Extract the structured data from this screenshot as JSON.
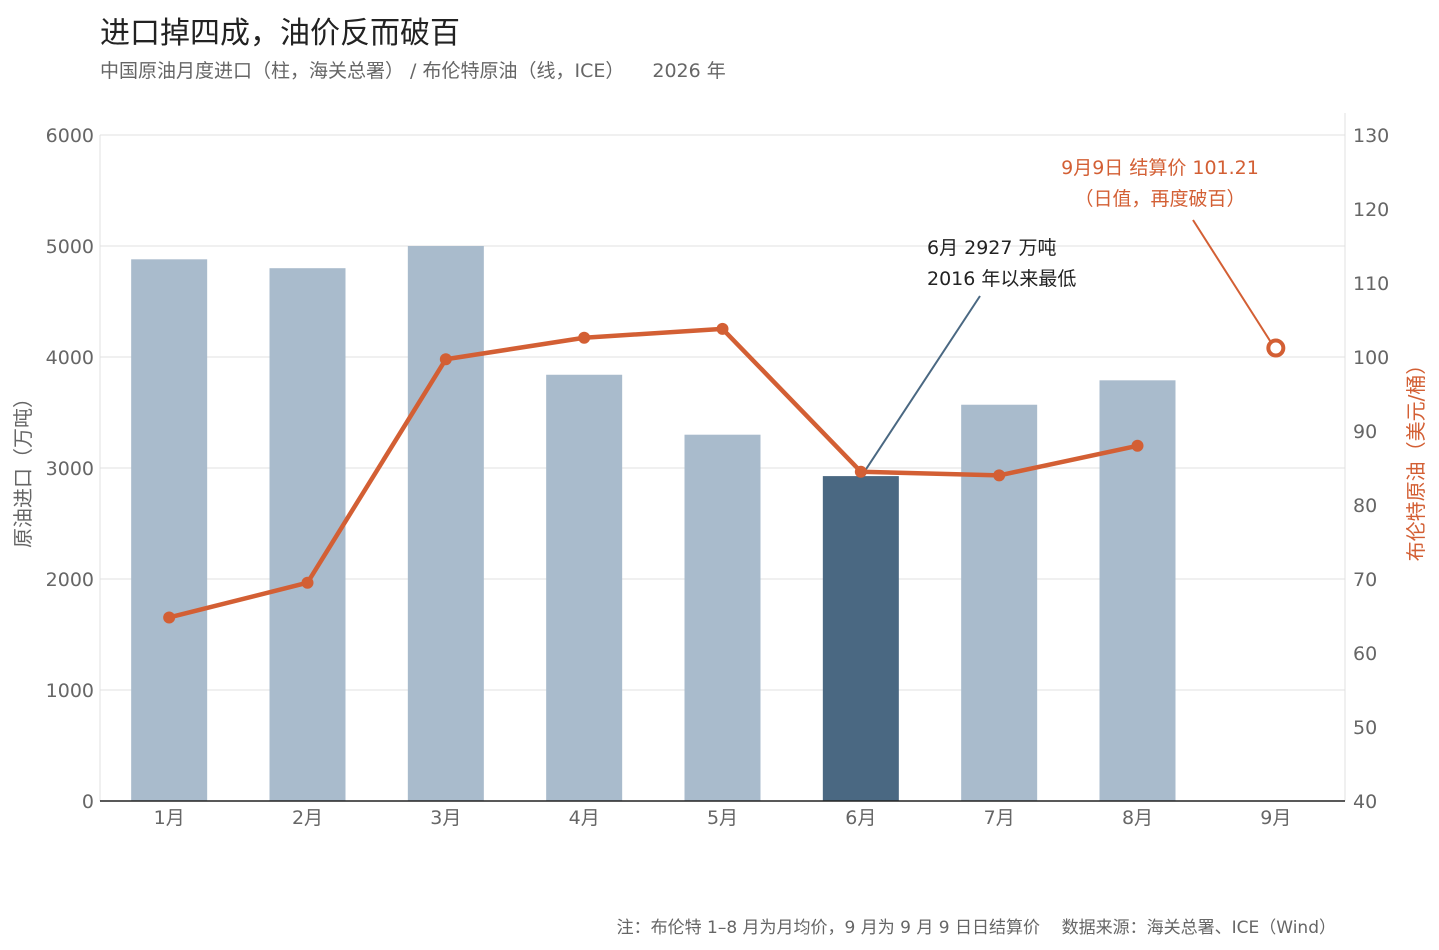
{
  "colors": {
    "bar": "#a9bbcc",
    "bar_highlight": "#4a6882",
    "line": "#d35f34",
    "grid": "#e1e1e1",
    "axis": "#222222",
    "leader_dark": "#4a6882"
  },
  "header": {
    "title": "进口掉四成，油价反而破百",
    "subtitle": "中国原油月度进口（柱，海关总署） / 布伦特原油（线，ICE）",
    "year": "2026 年"
  },
  "chart_data": {
    "type": "bar+line",
    "categories": [
      "1月",
      "2月",
      "3月",
      "4月",
      "5月",
      "6月",
      "7月",
      "8月",
      "9月"
    ],
    "bar_series": {
      "axis": "left",
      "values": [
        4880,
        4800,
        5000,
        3840,
        3300,
        2927,
        3570,
        3790,
        null
      ],
      "highlight_index": 5
    },
    "line_series": {
      "axis": "right",
      "values": [
        64.8,
        69.5,
        99.7,
        102.6,
        103.8,
        84.5,
        84.0,
        88.0
      ]
    },
    "point_marker": {
      "category_index": 8,
      "value": 101.21,
      "style": "hollow"
    },
    "left_axis": {
      "label": "原油进口（万吨）",
      "min": 0,
      "max": 6000,
      "ticks": [
        0,
        1000,
        2000,
        3000,
        4000,
        5000,
        6000
      ]
    },
    "right_axis": {
      "label": "布伦特原油（美元/桶）",
      "min": 40,
      "max": 130,
      "ticks": [
        40,
        50,
        60,
        70,
        80,
        90,
        100,
        110,
        120,
        130
      ]
    },
    "grid": true,
    "annotations": [
      {
        "target": "bar",
        "index": 5,
        "lines": [
          "6月 2927 万吨",
          "2016 年以来最低"
        ]
      },
      {
        "target": "point",
        "index": 8,
        "lines": [
          "9月9日 结算价 101.21",
          "（日值，再度破百）"
        ]
      }
    ]
  },
  "footer": {
    "note": "注：布伦特 1–8 月为月均价，9 月为 9 月 9 日日结算价",
    "source": "数据来源：海关总署、ICE（Wind）"
  }
}
